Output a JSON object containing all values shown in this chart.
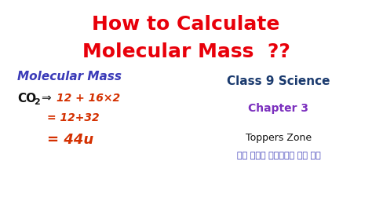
{
  "bg_color": "#ffffff",
  "title_line1": "How to Calculate",
  "title_line2": "Molecular Mass  ??",
  "title_color": "#e8000a",
  "title_fontsize": 18,
  "handwritten_label": "Molecular Mass",
  "handwritten_color": "#3a3ab8",
  "handwritten_fontsize": 11,
  "formula_co": "CO",
  "formula_sub2": "2",
  "formula_arrow": "⇒",
  "formula_rhs1": "12 + 16×2",
  "formula_rhs2": "= 12+32",
  "formula_rhs3": "= 44u",
  "formula_color_black": "#111111",
  "formula_color_red": "#d43000",
  "formula_fontsize_main": 11,
  "formula_fontsize_sub": 8,
  "formula_fontsize_rhs": 10,
  "formula_fontsize_rhs3": 11,
  "class_text": "Class 9 Science",
  "class_color": "#1a3a6e",
  "class_fontsize": 11,
  "chapter_text": "Chapter 3",
  "chapter_color": "#7b2fbe",
  "chapter_fontsize": 10,
  "brand_text": "Toppers Zone",
  "brand_color": "#111111",
  "brand_fontsize": 9,
  "hindi_text": "एक कदम सफलता की ओर",
  "hindi_color": "#3a3ab8",
  "hindi_fontsize": 8,
  "fig_width": 4.74,
  "fig_height": 2.66,
  "dpi": 100
}
